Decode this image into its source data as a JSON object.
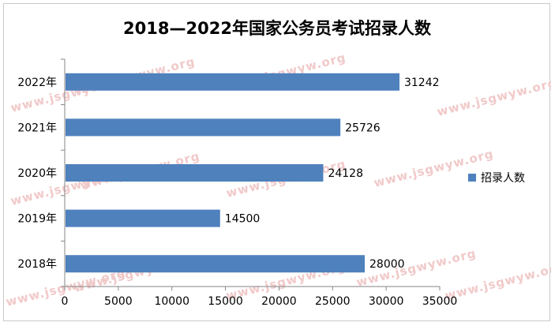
{
  "chart_data": {
    "type": "bar",
    "orientation": "horizontal",
    "title": "2018—2022年国家公务员考试招录人数",
    "categories": [
      "2022年",
      "2021年",
      "2020年",
      "2019年",
      "2018年"
    ],
    "series": [
      {
        "name": "招录人数",
        "values": [
          31242,
          25726,
          24128,
          14500,
          28000
        ],
        "color": "#4f81bd"
      }
    ],
    "data_labels": [
      "31242",
      "25726",
      "24128",
      "14500",
      "28000"
    ],
    "xlim": [
      0,
      35000
    ],
    "x_ticks": [
      0,
      5000,
      10000,
      15000,
      20000,
      25000,
      30000,
      35000
    ],
    "x_tick_labels": [
      "0",
      "5000",
      "10000",
      "15000",
      "20000",
      "25000",
      "30000",
      "35000"
    ],
    "grid": false,
    "legend_position": "right"
  },
  "watermark": {
    "text": "www.jsgwyw.org",
    "color": "#f1c9c9"
  }
}
